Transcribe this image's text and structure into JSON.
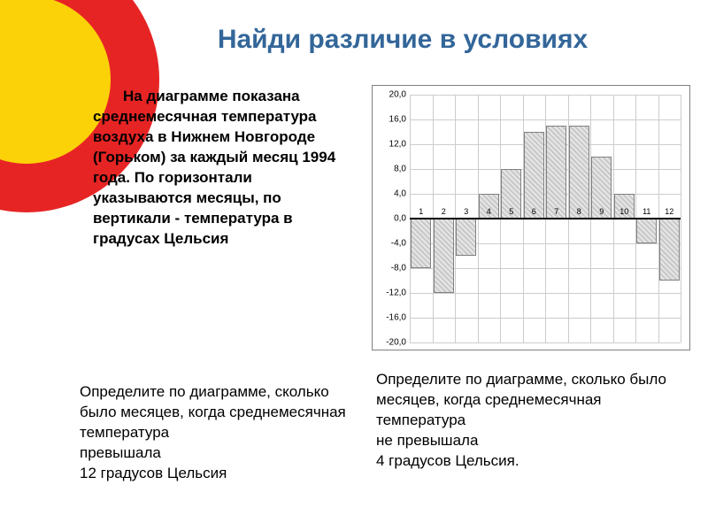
{
  "title": "Найди различие в условиях",
  "left_text": "На диаграмме показана среднемесячная температура воздуха в Нижнем Новгороде (Горьком) за каждый месяц 1994 года. По горизонтали указываются месяцы, по вертикали - температура в градусах Цельсия",
  "overlap_text": "Определите по диаграмме, сколько было месяцев, когда среднемесячная температура\n               превышала\n  12 градусов Цельсия",
  "right_caption": "Определите по диаграмме, сколько было месяцев, когда среднемесячная температура\n      не превышала\n   4 градусов Цельсия.",
  "decoration": {
    "outer_color": "#e72424",
    "inner_color": "#fbd208",
    "outer_radius": 150,
    "inner_radius": 95
  },
  "chart": {
    "type": "bar",
    "ylim": [
      -20,
      20
    ],
    "ytick_step": 4,
    "yticks": [
      -20,
      -16,
      -12,
      -8,
      -4,
      0,
      4,
      8,
      12,
      16,
      20
    ],
    "ytick_format": "comma_decimal_one",
    "months": [
      1,
      2,
      3,
      4,
      5,
      6,
      7,
      8,
      9,
      10,
      11,
      12
    ],
    "values": [
      -8,
      -12,
      -6,
      4,
      8,
      14,
      15,
      15,
      10,
      4,
      -4,
      -10
    ],
    "bar_fill": "#c8c8c8",
    "bar_fill_alt": "#e6e6e6",
    "bar_border": "#808080",
    "grid_color": "#cccccc",
    "axis_color": "#000000",
    "background_color": "#ffffff",
    "title_fontsize": 10,
    "xlabel_fontsize": 9,
    "ylabel_fontsize": 10,
    "bar_width_ratio": 0.9
  }
}
